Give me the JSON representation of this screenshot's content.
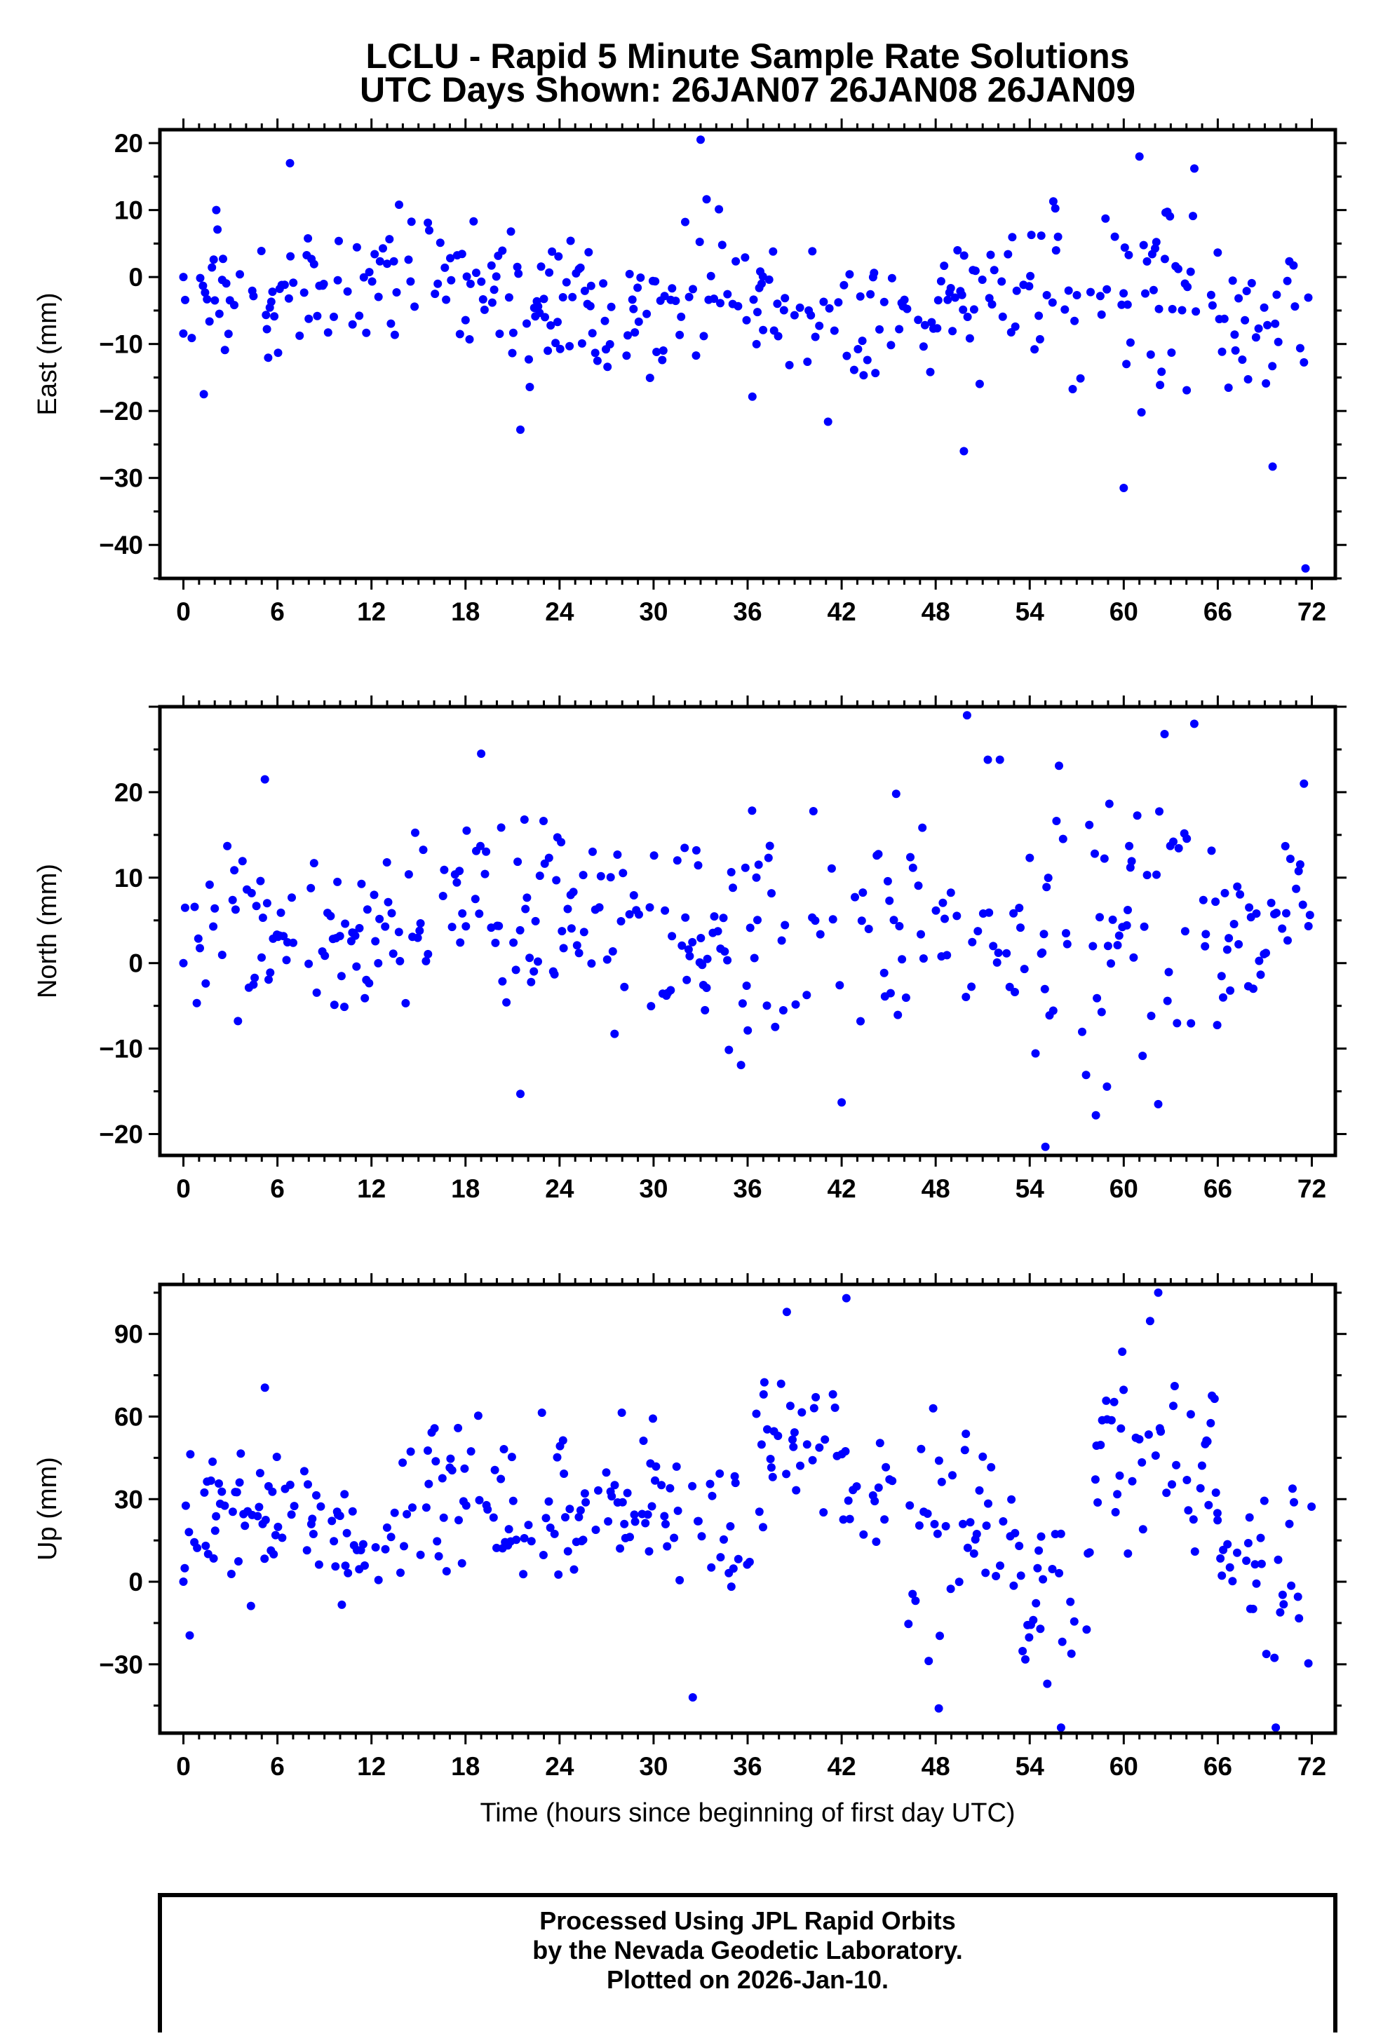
{
  "figure": {
    "title": "LCLU - Rapid 5 Minute Sample Rate Solutions",
    "subtitle": "UTC Days Shown:  26JAN07 26JAN08 26JAN09",
    "credits": [
      "Processed Using JPL Rapid Orbits",
      "by the Nevada Geodetic Laboratory.",
      "Plotted on 2026-Jan-10."
    ],
    "point_color": "#0000ff"
  },
  "chart_data": [
    {
      "type": "scatter",
      "ylabel": "East (mm)",
      "xlabel": "",
      "xlim": [
        -1.5,
        73.5
      ],
      "ylim": [
        -45,
        22
      ],
      "xticks": [
        0,
        6,
        12,
        18,
        24,
        30,
        36,
        42,
        48,
        54,
        60,
        66,
        72
      ],
      "xtick_labels": [
        "0",
        "6",
        "12",
        "18",
        "24",
        "30",
        "36",
        "42",
        "48",
        "54",
        "60",
        "66",
        "72"
      ],
      "yticks": [
        20,
        10,
        0,
        -10,
        -20,
        -30,
        -40
      ],
      "ytick_labels": [
        "20",
        "10",
        "0",
        "−10",
        "−20",
        "−30",
        "−40"
      ],
      "grid": false,
      "notable_points": [
        {
          "x": 0.0,
          "y": 0.0
        },
        {
          "x": 1.3,
          "y": -17.5
        },
        {
          "x": 6.8,
          "y": 17.0
        },
        {
          "x": 21.5,
          "y": -22.8
        },
        {
          "x": 33.0,
          "y": 20.5
        },
        {
          "x": 49.8,
          "y": -26.0
        },
        {
          "x": 60.0,
          "y": -31.5
        },
        {
          "x": 69.5,
          "y": -28.3
        },
        {
          "x": 71.6,
          "y": -43.5
        },
        {
          "x": 61.0,
          "y": 18.0
        }
      ],
      "segments": [
        {
          "x_start": 0,
          "x_end": 8,
          "center": -3,
          "spread": 5
        },
        {
          "x_start": 8,
          "x_end": 20,
          "center": 0,
          "spread": 4.5
        },
        {
          "x_start": 20,
          "x_end": 26,
          "center": -4,
          "spread": 6
        },
        {
          "x_start": 26,
          "x_end": 32,
          "center": -6,
          "spread": 4.5
        },
        {
          "x_start": 32,
          "x_end": 37,
          "center": -4,
          "spread": 6
        },
        {
          "x_start": 37,
          "x_end": 48,
          "center": -6,
          "spread": 6
        },
        {
          "x_start": 48,
          "x_end": 57,
          "center": -3,
          "spread": 5.5
        },
        {
          "x_start": 57,
          "x_end": 66,
          "center": -2,
          "spread": 7
        },
        {
          "x_start": 66,
          "x_end": 72,
          "center": -8,
          "spread": 6
        }
      ]
    },
    {
      "type": "scatter",
      "ylabel": "North (mm)",
      "xlabel": "",
      "xlim": [
        -1.5,
        73.5
      ],
      "ylim": [
        -22.5,
        30
      ],
      "xticks": [
        0,
        6,
        12,
        18,
        24,
        30,
        36,
        42,
        48,
        54,
        60,
        66,
        72
      ],
      "xtick_labels": [
        "0",
        "6",
        "12",
        "18",
        "24",
        "30",
        "36",
        "42",
        "48",
        "54",
        "60",
        "66",
        "72"
      ],
      "yticks": [
        20,
        10,
        0,
        -10,
        -20
      ],
      "ytick_labels": [
        "20",
        "10",
        "0",
        "−10",
        "−20"
      ],
      "grid": false,
      "notable_points": [
        {
          "x": 0.0,
          "y": 0.0
        },
        {
          "x": 5.2,
          "y": 21.5
        },
        {
          "x": 19.0,
          "y": 24.5
        },
        {
          "x": 21.5,
          "y": -15.3
        },
        {
          "x": 42.0,
          "y": -16.3
        },
        {
          "x": 50.0,
          "y": 29.0
        },
        {
          "x": 55.0,
          "y": -21.5
        },
        {
          "x": 64.5,
          "y": 28.0
        },
        {
          "x": 62.2,
          "y": -16.5
        },
        {
          "x": 71.5,
          "y": 21.0
        }
      ],
      "segments": [
        {
          "x_start": 0,
          "x_end": 5,
          "center": 2,
          "spread": 4.5
        },
        {
          "x_start": 5,
          "x_end": 18,
          "center": 4,
          "spread": 5
        },
        {
          "x_start": 18,
          "x_end": 24,
          "center": 4,
          "spread": 6
        },
        {
          "x_start": 24,
          "x_end": 34,
          "center": 3,
          "spread": 6
        },
        {
          "x_start": 34,
          "x_end": 44,
          "center": 5,
          "spread": 7
        },
        {
          "x_start": 44,
          "x_end": 50,
          "center": 3,
          "spread": 7
        },
        {
          "x_start": 50,
          "x_end": 60,
          "center": 3,
          "spread": 8
        },
        {
          "x_start": 60,
          "x_end": 66,
          "center": 6,
          "spread": 8
        },
        {
          "x_start": 66,
          "x_end": 72,
          "center": 5,
          "spread": 5
        }
      ]
    },
    {
      "type": "scatter",
      "ylabel": "Up (mm)",
      "xlabel": "Time (hours since beginning of first day UTC)",
      "xlim": [
        -1.5,
        73.5
      ],
      "ylim": [
        -55,
        108
      ],
      "xticks": [
        0,
        6,
        12,
        18,
        24,
        30,
        36,
        42,
        48,
        54,
        60,
        66,
        72
      ],
      "xtick_labels": [
        "0",
        "6",
        "12",
        "18",
        "24",
        "30",
        "36",
        "42",
        "48",
        "54",
        "60",
        "66",
        "72"
      ],
      "yticks": [
        90,
        60,
        30,
        0,
        -30
      ],
      "ytick_labels": [
        "90",
        "60",
        "30",
        "0",
        "−30"
      ],
      "grid": false,
      "notable_points": [
        {
          "x": 0.0,
          "y": 0.0
        },
        {
          "x": 0.4,
          "y": -19.5
        },
        {
          "x": 5.2,
          "y": 70.5
        },
        {
          "x": 32.5,
          "y": -42.0
        },
        {
          "x": 38.5,
          "y": 98.0
        },
        {
          "x": 42.3,
          "y": 103.0
        },
        {
          "x": 48.2,
          "y": -46.0
        },
        {
          "x": 56.0,
          "y": -53.0
        },
        {
          "x": 62.2,
          "y": 105.0
        },
        {
          "x": 69.7,
          "y": -53.0
        }
      ],
      "segments": [
        {
          "x_start": 0,
          "x_end": 10,
          "center": 25,
          "spread": 13
        },
        {
          "x_start": 10,
          "x_end": 14,
          "center": 10,
          "spread": 12
        },
        {
          "x_start": 14,
          "x_end": 20,
          "center": 35,
          "spread": 12
        },
        {
          "x_start": 20,
          "x_end": 30,
          "center": 25,
          "spread": 14
        },
        {
          "x_start": 30,
          "x_end": 37,
          "center": 22,
          "spread": 15
        },
        {
          "x_start": 37,
          "x_end": 42,
          "center": 50,
          "spread": 18
        },
        {
          "x_start": 42,
          "x_end": 46,
          "center": 30,
          "spread": 16
        },
        {
          "x_start": 46,
          "x_end": 53,
          "center": 18,
          "spread": 18
        },
        {
          "x_start": 53,
          "x_end": 58,
          "center": -5,
          "spread": 20
        },
        {
          "x_start": 58,
          "x_end": 66,
          "center": 45,
          "spread": 20
        },
        {
          "x_start": 66,
          "x_end": 69,
          "center": 15,
          "spread": 12
        },
        {
          "x_start": 69,
          "x_end": 72,
          "center": 0,
          "spread": 16
        }
      ]
    }
  ]
}
